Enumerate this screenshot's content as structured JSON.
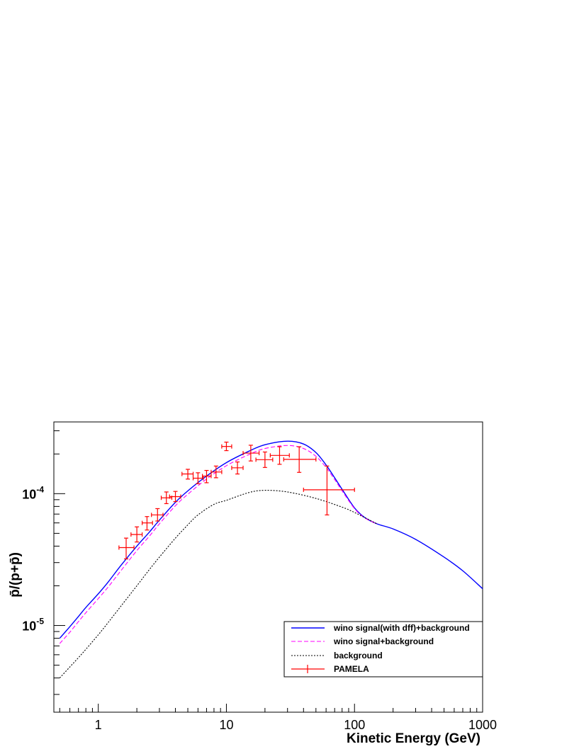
{
  "chart_data": {
    "type": "line",
    "xlabel": "Kinetic Energy (GeV)",
    "ylabel": "p̄/(p+p̄)",
    "x_scale": "log",
    "y_scale": "log",
    "xlim": [
      0.45,
      1000
    ],
    "ylim": [
      2.2e-06,
      0.00035
    ],
    "x_tick_labels": [
      {
        "value": 1,
        "label": "1"
      },
      {
        "value": 10,
        "label": "10"
      },
      {
        "value": 100,
        "label": "100"
      },
      {
        "value": 1000,
        "label": "1000"
      }
    ],
    "y_tick_labels": [
      {
        "value": 0.0001,
        "base": "10",
        "exp": "-4"
      },
      {
        "value": 1e-05,
        "base": "10",
        "exp": "-5"
      }
    ],
    "grid": false,
    "legend_position": "bottom-right",
    "series": [
      {
        "name": "wino signal(with dff)+background",
        "style": "solid",
        "color": "#0000ff",
        "points": [
          [
            0.5,
            8e-06
          ],
          [
            0.6,
            9.8e-06
          ],
          [
            0.7,
            1.17e-05
          ],
          [
            0.8,
            1.37e-05
          ],
          [
            1.0,
            1.74e-05
          ],
          [
            1.2,
            2.15e-05
          ],
          [
            1.5,
            2.85e-05
          ],
          [
            2.0,
            4e-05
          ],
          [
            2.5,
            5.1e-05
          ],
          [
            3.0,
            6.3e-05
          ],
          [
            4.0,
            8.6e-05
          ],
          [
            5.0,
            0.000105
          ],
          [
            7.0,
            0.000136
          ],
          [
            10.0,
            0.000172
          ],
          [
            15.0,
            0.00021
          ],
          [
            20.0,
            0.000235
          ],
          [
            30.0,
            0.00025
          ],
          [
            40.0,
            0.000238
          ],
          [
            50.0,
            0.000205
          ],
          [
            60.0,
            0.000165
          ],
          [
            70.0,
            0.000132
          ],
          [
            80.0,
            0.000108
          ],
          [
            100.0,
            7.8e-05
          ],
          [
            120.0,
            6.6e-05
          ],
          [
            150.0,
            5.9e-05
          ],
          [
            200.0,
            5.4e-05
          ],
          [
            300.0,
            4.5e-05
          ],
          [
            500.0,
            3.3e-05
          ],
          [
            700.0,
            2.6e-05
          ],
          [
            1000.0,
            1.9e-05
          ]
        ]
      },
      {
        "name": "wino signal+background",
        "style": "dashed",
        "color": "#ff00ff",
        "points": [
          [
            0.5,
            7.3e-06
          ],
          [
            0.6,
            8.9e-06
          ],
          [
            0.7,
            1.07e-05
          ],
          [
            0.8,
            1.25e-05
          ],
          [
            1.0,
            1.6e-05
          ],
          [
            1.2,
            1.97e-05
          ],
          [
            1.5,
            2.6e-05
          ],
          [
            2.0,
            3.7e-05
          ],
          [
            2.5,
            4.75e-05
          ],
          [
            3.0,
            5.9e-05
          ],
          [
            4.0,
            8.1e-05
          ],
          [
            5.0,
            9.9e-05
          ],
          [
            7.0,
            0.000129
          ],
          [
            10.0,
            0.000163
          ],
          [
            15.0,
            0.000198
          ],
          [
            20.0,
            0.00022
          ],
          [
            30.0,
            0.000232
          ],
          [
            40.0,
            0.00022
          ],
          [
            50.0,
            0.000192
          ],
          [
            60.0,
            0.000158
          ],
          [
            70.0,
            0.000128
          ],
          [
            80.0,
            0.000105
          ],
          [
            100.0,
            7.7e-05
          ],
          [
            120.0,
            6.55e-05
          ],
          [
            150.0,
            5.9e-05
          ]
        ]
      },
      {
        "name": "background",
        "style": "dotted",
        "color": "#000000",
        "points": [
          [
            0.5,
            4e-06
          ],
          [
            0.6,
            4.85e-06
          ],
          [
            0.7,
            5.7e-06
          ],
          [
            0.8,
            6.6e-06
          ],
          [
            1.0,
            8.5e-06
          ],
          [
            1.2,
            1.06e-05
          ],
          [
            1.5,
            1.4e-05
          ],
          [
            2.0,
            2e-05
          ],
          [
            2.5,
            2.65e-05
          ],
          [
            3.0,
            3.3e-05
          ],
          [
            4.0,
            4.6e-05
          ],
          [
            5.0,
            5.8e-05
          ],
          [
            6.0,
            6.9e-05
          ],
          [
            8.0,
            8.3e-05
          ],
          [
            10.0,
            8.9e-05
          ],
          [
            15.0,
            0.000102
          ],
          [
            20.0,
            0.000106
          ],
          [
            30.0,
            0.000103
          ],
          [
            50.0,
            9.2e-05
          ],
          [
            80.0,
            7.9e-05
          ],
          [
            100.0,
            7.2e-05
          ],
          [
            150.0,
            5.9e-05
          ]
        ]
      },
      {
        "name": "PAMELA",
        "style": "points",
        "color": "#ff0000",
        "points": [
          {
            "x": 1.65,
            "y": 3.9e-05,
            "xlo": 1.45,
            "xhi": 1.9,
            "ylo": 3.2e-05,
            "yhi": 4.6e-05
          },
          {
            "x": 2.0,
            "y": 4.9e-05,
            "xlo": 1.8,
            "xhi": 2.2,
            "ylo": 4.3e-05,
            "yhi": 5.6e-05
          },
          {
            "x": 2.4,
            "y": 6e-05,
            "xlo": 2.2,
            "xhi": 2.65,
            "ylo": 5.3e-05,
            "yhi": 6.7e-05
          },
          {
            "x": 2.9,
            "y": 6.9e-05,
            "xlo": 2.6,
            "xhi": 3.2,
            "ylo": 6.2e-05,
            "yhi": 7.7e-05
          },
          {
            "x": 3.4,
            "y": 9.3e-05,
            "xlo": 3.1,
            "xhi": 3.75,
            "ylo": 8.4e-05,
            "yhi": 0.000103
          },
          {
            "x": 4.0,
            "y": 9.5e-05,
            "xlo": 3.6,
            "xhi": 4.4,
            "ylo": 8.7e-05,
            "yhi": 0.000104
          },
          {
            "x": 5.0,
            "y": 0.000141,
            "xlo": 4.5,
            "xhi": 5.5,
            "ylo": 0.000129,
            "yhi": 0.000153
          },
          {
            "x": 6.0,
            "y": 0.000131,
            "xlo": 5.5,
            "xhi": 6.6,
            "ylo": 0.000119,
            "yhi": 0.000144
          },
          {
            "x": 7.0,
            "y": 0.000136,
            "xlo": 6.5,
            "xhi": 7.6,
            "ylo": 0.000121,
            "yhi": 0.00015
          },
          {
            "x": 8.3,
            "y": 0.000146,
            "xlo": 7.6,
            "xhi": 9.2,
            "ylo": 0.000132,
            "yhi": 0.000162
          },
          {
            "x": 10.0,
            "y": 0.000228,
            "xlo": 9.2,
            "xhi": 11.0,
            "ylo": 0.000212,
            "yhi": 0.000246
          },
          {
            "x": 12.2,
            "y": 0.000157,
            "xlo": 11.0,
            "xhi": 13.5,
            "ylo": 0.000141,
            "yhi": 0.000174
          },
          {
            "x": 15.5,
            "y": 0.000203,
            "xlo": 13.5,
            "xhi": 18.0,
            "ylo": 0.000177,
            "yhi": 0.000233
          },
          {
            "x": 20.0,
            "y": 0.000181,
            "xlo": 17.0,
            "xhi": 23.0,
            "ylo": 0.000158,
            "yhi": 0.000207
          },
          {
            "x": 26.0,
            "y": 0.000195,
            "xlo": 22.0,
            "xhi": 31.0,
            "ylo": 0.000167,
            "yhi": 0.000227
          },
          {
            "x": 37.0,
            "y": 0.000182,
            "xlo": 28.0,
            "xhi": 50.0,
            "ylo": 0.000145,
            "yhi": 0.000227
          },
          {
            "x": 61.0,
            "y": 0.000107,
            "xlo": 40.0,
            "xhi": 100.0,
            "ylo": 6.9e-05,
            "yhi": 0.000162
          }
        ]
      }
    ]
  }
}
